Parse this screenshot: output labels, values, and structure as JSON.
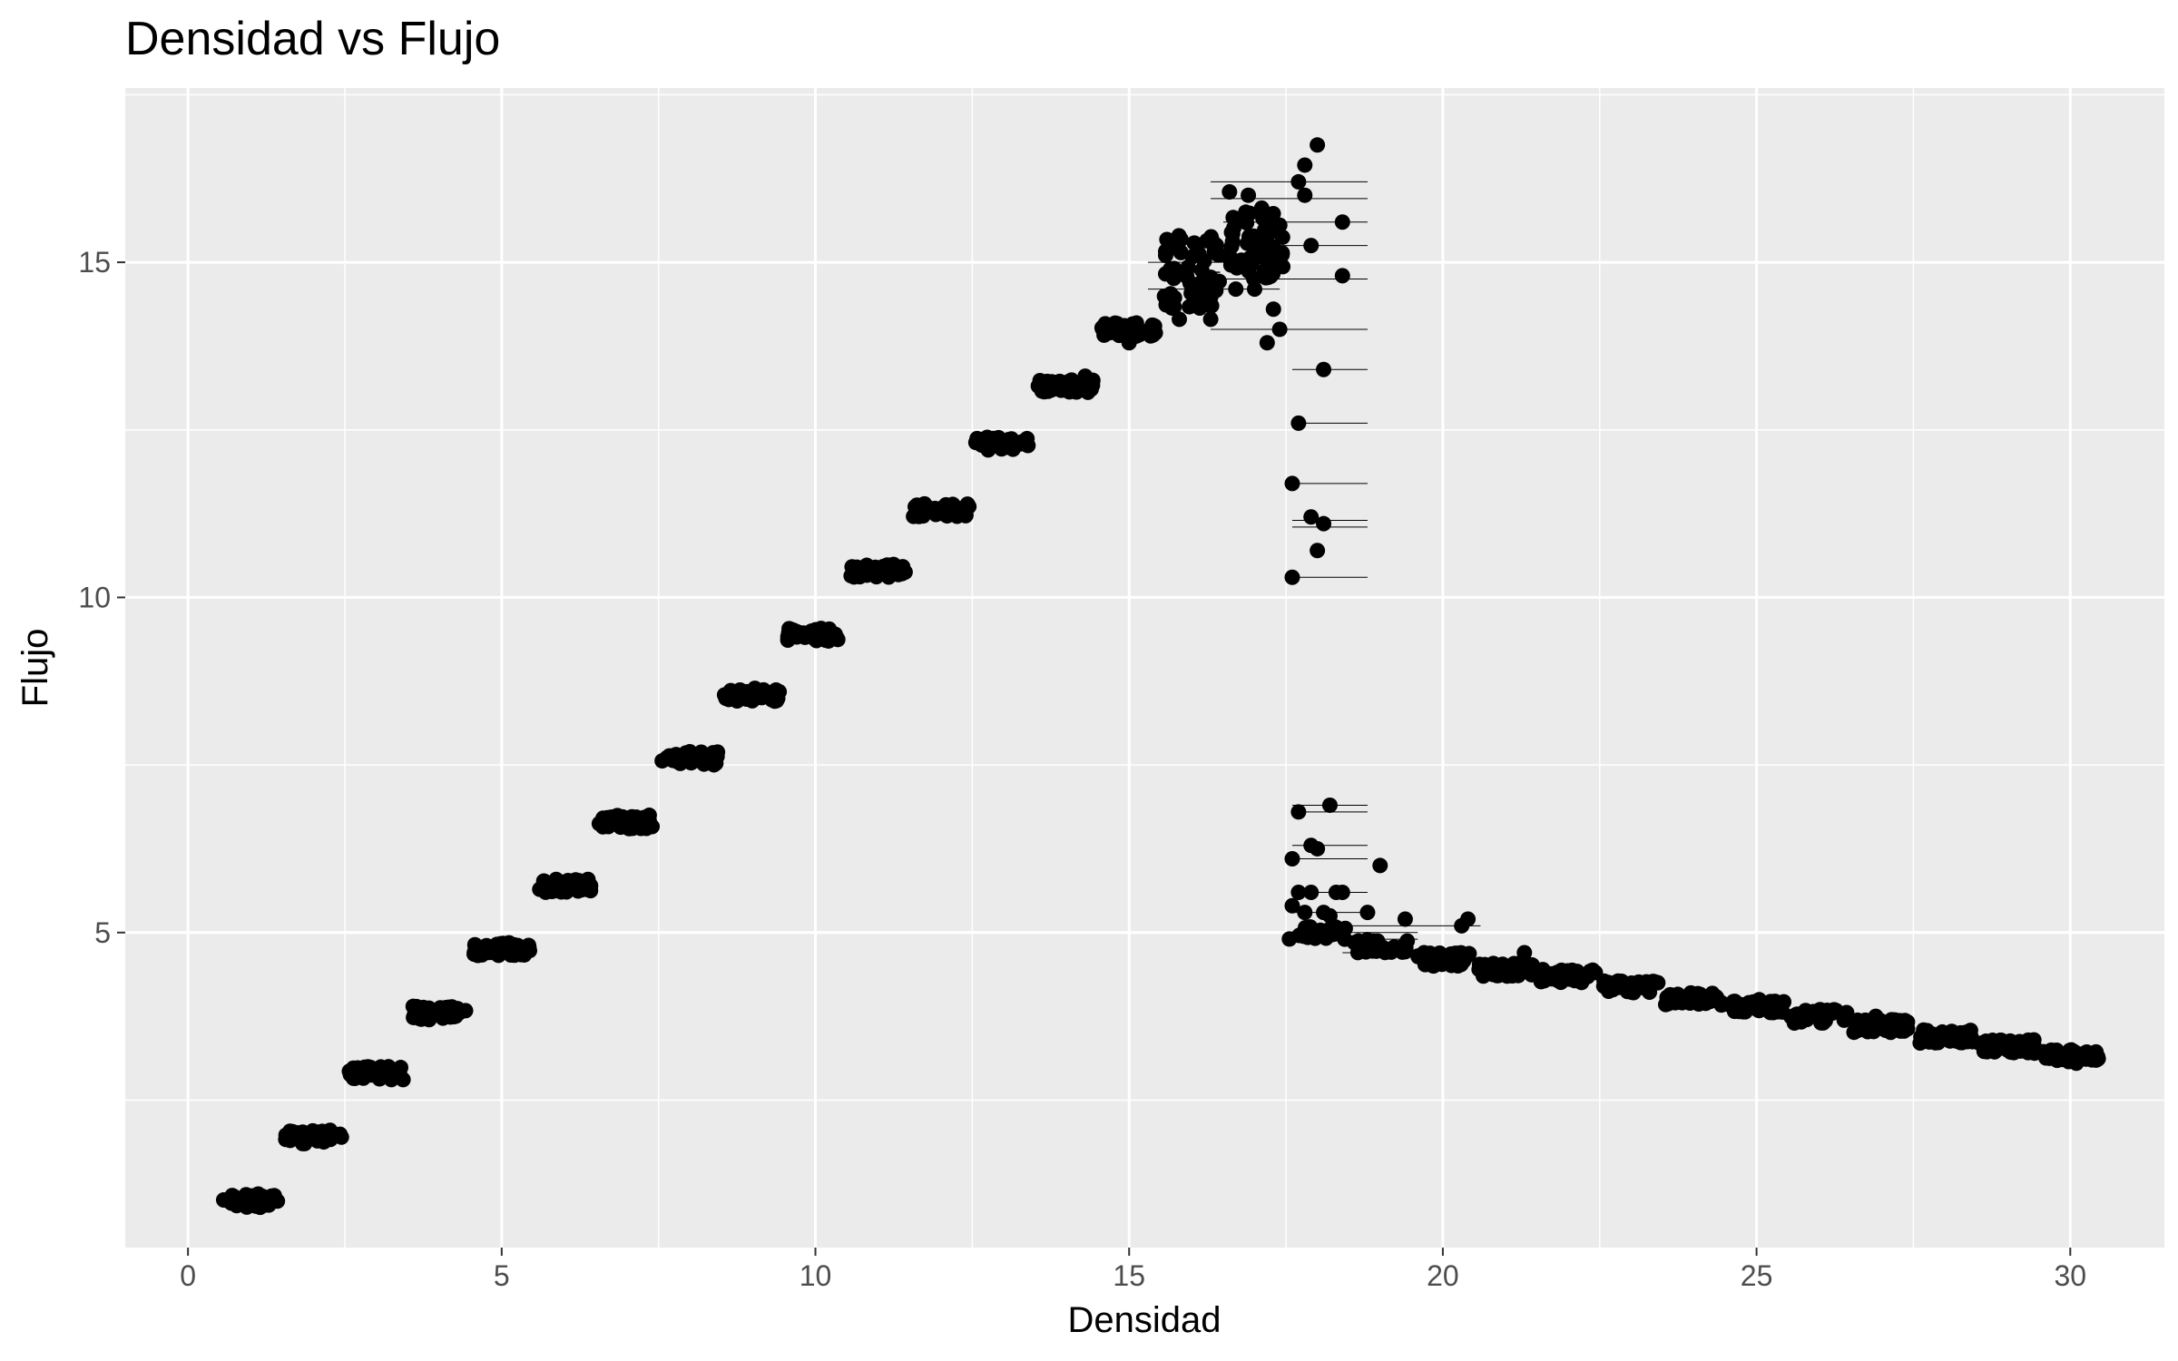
{
  "chart_data": {
    "type": "scatter",
    "title": "Densidad vs Flujo",
    "xlabel": "Densidad",
    "ylabel": "Flujo",
    "xlim": [
      -1,
      31.5
    ],
    "ylim": [
      0.3,
      17.6
    ],
    "x_ticks": [
      0,
      5,
      10,
      15,
      20,
      25,
      30
    ],
    "y_ticks": [
      5,
      10,
      15
    ],
    "grid": true,
    "legend": "none",
    "colors": {
      "panel": "#ebebeb",
      "grid": "#ffffff",
      "point": "#000000",
      "tick_text": "#4d4d4d"
    },
    "clusters": [
      {
        "x": [
          0.5,
          1.5
        ],
        "y": 1.0,
        "n": 40
      },
      {
        "x": [
          1.5,
          2.5
        ],
        "y": 1.95,
        "n": 40
      },
      {
        "x": [
          2.5,
          3.5
        ],
        "y": 2.9,
        "n": 40
      },
      {
        "x": [
          3.5,
          4.5
        ],
        "y": 3.8,
        "n": 40
      },
      {
        "x": [
          4.5,
          5.5
        ],
        "y": 4.75,
        "n": 40
      },
      {
        "x": [
          5.5,
          6.5
        ],
        "y": 5.7,
        "n": 40
      },
      {
        "x": [
          6.5,
          7.5
        ],
        "y": 6.65,
        "n": 40
      },
      {
        "x": [
          7.5,
          8.5
        ],
        "y": 7.6,
        "n": 40
      },
      {
        "x": [
          8.5,
          9.5
        ],
        "y": 8.55,
        "n": 40
      },
      {
        "x": [
          9.5,
          10.5
        ],
        "y": 9.45,
        "n": 40
      },
      {
        "x": [
          10.5,
          11.5
        ],
        "y": 10.4,
        "n": 40
      },
      {
        "x": [
          11.5,
          12.5
        ],
        "y": 11.3,
        "n": 40
      },
      {
        "x": [
          12.5,
          13.5
        ],
        "y": 12.3,
        "n": 40
      },
      {
        "x": [
          13.5,
          14.5
        ],
        "y": 13.15,
        "n": 40
      },
      {
        "x": [
          14.5,
          15.5
        ],
        "y": 14.0,
        "n": 40
      },
      {
        "x": [
          15.5,
          16.5
        ],
        "y": 14.85,
        "n": 60
      },
      {
        "x": [
          16.5,
          17.5
        ],
        "y": 15.3,
        "n": 60
      },
      {
        "x": [
          17.5,
          18.5
        ],
        "y": 5.0,
        "n": 30
      },
      {
        "x": [
          18.5,
          19.5
        ],
        "y": 4.8,
        "n": 40
      },
      {
        "x": [
          19.5,
          20.5
        ],
        "y": 4.6,
        "n": 40
      },
      {
        "x": [
          20.5,
          21.5
        ],
        "y": 4.45,
        "n": 40
      },
      {
        "x": [
          21.5,
          22.5
        ],
        "y": 4.35,
        "n": 40
      },
      {
        "x": [
          22.5,
          23.5
        ],
        "y": 4.2,
        "n": 40
      },
      {
        "x": [
          23.5,
          24.5
        ],
        "y": 4.0,
        "n": 40
      },
      {
        "x": [
          24.5,
          25.5
        ],
        "y": 3.9,
        "n": 40
      },
      {
        "x": [
          25.5,
          26.5
        ],
        "y": 3.75,
        "n": 40
      },
      {
        "x": [
          26.5,
          27.5
        ],
        "y": 3.6,
        "n": 40
      },
      {
        "x": [
          27.5,
          28.5
        ],
        "y": 3.45,
        "n": 40
      },
      {
        "x": [
          28.5,
          29.5
        ],
        "y": 3.3,
        "n": 40
      },
      {
        "x": [
          29.5,
          30.5
        ],
        "y": 3.15,
        "n": 40
      }
    ],
    "points": [
      [
        17.6,
        10.3
      ],
      [
        17.6,
        11.7
      ],
      [
        17.7,
        12.6
      ],
      [
        17.7,
        16.2
      ],
      [
        17.8,
        16.45
      ],
      [
        17.8,
        16.0
      ],
      [
        17.9,
        15.25
      ],
      [
        18.0,
        16.75
      ],
      [
        18.0,
        10.7
      ],
      [
        17.9,
        11.2
      ],
      [
        18.1,
        11.1
      ],
      [
        18.1,
        13.4
      ],
      [
        18.4,
        15.6
      ],
      [
        18.4,
        14.8
      ],
      [
        17.6,
        6.1
      ],
      [
        17.7,
        6.8
      ],
      [
        17.9,
        6.3
      ],
      [
        18.0,
        6.25
      ],
      [
        18.2,
        6.9
      ],
      [
        17.6,
        5.4
      ],
      [
        17.7,
        5.6
      ],
      [
        17.8,
        5.3
      ],
      [
        17.9,
        5.6
      ],
      [
        18.1,
        5.3
      ],
      [
        18.2,
        5.25
      ],
      [
        18.3,
        5.6
      ],
      [
        18.4,
        5.6
      ],
      [
        19.0,
        6.0
      ],
      [
        18.8,
        5.3
      ],
      [
        19.4,
        5.2
      ],
      [
        20.3,
        5.1
      ],
      [
        20.4,
        5.2
      ],
      [
        21.3,
        4.7
      ],
      [
        16.6,
        16.05
      ],
      [
        16.9,
        16.0
      ],
      [
        17.2,
        13.8
      ],
      [
        17.4,
        14.0
      ],
      [
        17.3,
        14.3
      ],
      [
        16.3,
        14.15
      ],
      [
        16.3,
        14.35
      ],
      [
        15.8,
        14.15
      ],
      [
        15.6,
        14.4
      ],
      [
        17.0,
        14.6
      ],
      [
        16.7,
        14.6
      ],
      [
        14.0,
        13.2
      ],
      [
        14.3,
        13.3
      ],
      [
        15.0,
        13.8
      ],
      [
        26.9,
        3.75
      ]
    ],
    "segments": [
      [
        16.3,
        18.8,
        16.2
      ],
      [
        16.3,
        18.8,
        15.95
      ],
      [
        16.5,
        18.8,
        15.6
      ],
      [
        16.5,
        18.8,
        15.25
      ],
      [
        16.5,
        18.8,
        14.75
      ],
      [
        16.3,
        18.8,
        14.0
      ],
      [
        17.6,
        18.8,
        13.4
      ],
      [
        17.6,
        18.8,
        12.6
      ],
      [
        17.6,
        18.8,
        11.7
      ],
      [
        17.6,
        18.8,
        11.15
      ],
      [
        17.6,
        18.8,
        11.05
      ],
      [
        17.6,
        18.8,
        10.3
      ],
      [
        17.6,
        18.8,
        6.9
      ],
      [
        17.6,
        18.8,
        6.8
      ],
      [
        17.6,
        18.8,
        6.3
      ],
      [
        17.6,
        18.8,
        6.1
      ],
      [
        17.6,
        18.8,
        5.6
      ],
      [
        17.6,
        18.8,
        5.3
      ],
      [
        17.6,
        19.6,
        5.0
      ],
      [
        17.6,
        19.6,
        4.9
      ],
      [
        18.4,
        20.6,
        5.1
      ],
      [
        18.4,
        19.6,
        4.7
      ],
      [
        15.3,
        17.4,
        15.0
      ],
      [
        15.3,
        17.4,
        14.6
      ],
      [
        14.6,
        15.4,
        13.85
      ],
      [
        13.5,
        14.5,
        13.1
      ]
    ]
  }
}
